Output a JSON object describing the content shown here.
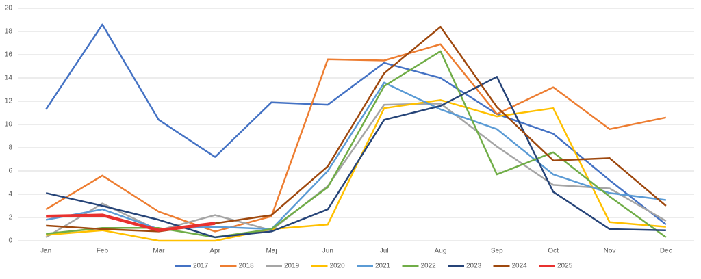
{
  "chart_data": {
    "type": "line",
    "categories": [
      "Jan",
      "Feb",
      "Mar",
      "Apr",
      "Maj",
      "Jun",
      "Jul",
      "Aug",
      "Sep",
      "Oct",
      "Nov",
      "Dec"
    ],
    "series": [
      {
        "name": "2017",
        "color": "#4472c4",
        "values": [
          11.3,
          18.6,
          10.4,
          7.2,
          11.9,
          11.7,
          15.3,
          14.0,
          10.9,
          9.2,
          5.2,
          1.4
        ]
      },
      {
        "name": "2018",
        "color": "#ed7d31",
        "values": [
          2.7,
          5.6,
          2.5,
          0.8,
          2.1,
          15.6,
          15.5,
          16.9,
          10.9,
          13.2,
          9.6,
          10.6
        ]
      },
      {
        "name": "2019",
        "color": "#a5a5a5",
        "values": [
          0.3,
          3.2,
          0.9,
          2.2,
          0.9,
          4.7,
          11.7,
          11.8,
          8.1,
          4.8,
          4.5,
          1.7
        ]
      },
      {
        "name": "2020",
        "color": "#ffc000",
        "values": [
          0.5,
          0.9,
          0.0,
          0.0,
          1.0,
          1.4,
          11.4,
          12.1,
          10.7,
          11.4,
          1.6,
          1.2
        ]
      },
      {
        "name": "2021",
        "color": "#5b9bd5",
        "values": [
          1.8,
          2.7,
          1.0,
          1.2,
          1.0,
          6.0,
          13.6,
          11.3,
          9.6,
          5.7,
          4.1,
          3.5
        ]
      },
      {
        "name": "2022",
        "color": "#70ad47",
        "values": [
          0.6,
          1.1,
          1.1,
          0.3,
          1.0,
          4.6,
          13.3,
          16.3,
          5.7,
          7.6,
          3.8,
          0.3
        ]
      },
      {
        "name": "2023",
        "color": "#264478",
        "values": [
          4.1,
          3.0,
          1.8,
          0.3,
          0.8,
          2.7,
          10.4,
          11.6,
          14.1,
          4.2,
          1.0,
          0.9
        ]
      },
      {
        "name": "2024",
        "color": "#9e480e",
        "values": [
          1.3,
          1.0,
          0.8,
          1.5,
          2.2,
          6.4,
          14.4,
          18.4,
          11.5,
          6.9,
          7.1,
          3.0
        ]
      },
      {
        "name": "2025",
        "color": "#e8312f",
        "values": [
          2.1,
          2.2,
          0.9,
          1.5,
          null,
          null,
          null,
          null,
          null,
          null,
          null,
          null
        ]
      }
    ],
    "ylim": [
      0,
      20
    ],
    "yticks": [
      0,
      2,
      4,
      6,
      8,
      10,
      12,
      14,
      16,
      18,
      20
    ],
    "grid": true,
    "legend": "bottom"
  }
}
